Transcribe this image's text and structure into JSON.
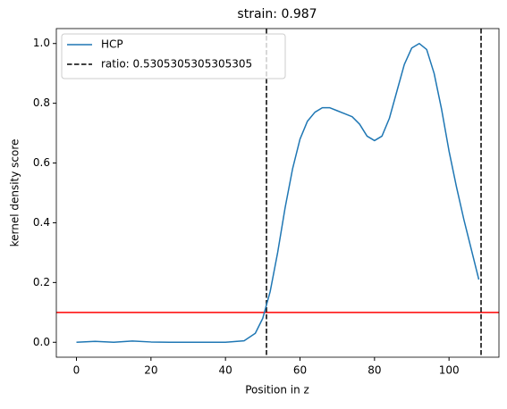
{
  "chart_data": {
    "type": "line",
    "title": "strain: 0.987",
    "x_label": "Position in z",
    "y_label": "kernel density score",
    "series": [
      {
        "name": "HCP",
        "color": "#1f77b4",
        "x": [
          0,
          5,
          10,
          15,
          20,
          25,
          30,
          35,
          40,
          45,
          48,
          50,
          52,
          54,
          56,
          58,
          60,
          62,
          64,
          66,
          68,
          70,
          72,
          74,
          76,
          78,
          80,
          82,
          84,
          86,
          88,
          90,
          92,
          94,
          96,
          98,
          100,
          102,
          104,
          106,
          108
        ],
        "values": [
          0.0,
          0.003,
          0.0,
          0.004,
          0.001,
          0.0,
          0.0,
          0.0,
          0.0,
          0.005,
          0.03,
          0.08,
          0.17,
          0.3,
          0.45,
          0.58,
          0.68,
          0.74,
          0.77,
          0.785,
          0.785,
          0.775,
          0.765,
          0.755,
          0.73,
          0.69,
          0.675,
          0.69,
          0.75,
          0.84,
          0.93,
          0.985,
          1.0,
          0.98,
          0.9,
          0.78,
          0.64,
          0.52,
          0.41,
          0.31,
          0.21
        ]
      }
    ],
    "vlines": {
      "name": "ratio: 0.5305305305305305",
      "color": "#000000",
      "x": [
        51,
        108.6
      ]
    },
    "hline": {
      "y": 0.1,
      "color": "#ff0000"
    },
    "xlim": [
      -5.4,
      113.4
    ],
    "ylim": [
      -0.05,
      1.05
    ],
    "xticks": [
      0,
      20,
      40,
      60,
      80,
      100
    ],
    "yticks": [
      {
        "value": 0,
        "label": "0.0"
      },
      0.2,
      0.4,
      0.6,
      0.8,
      {
        "value": 1,
        "label": "1.0"
      }
    ],
    "legend": "upper-left"
  }
}
